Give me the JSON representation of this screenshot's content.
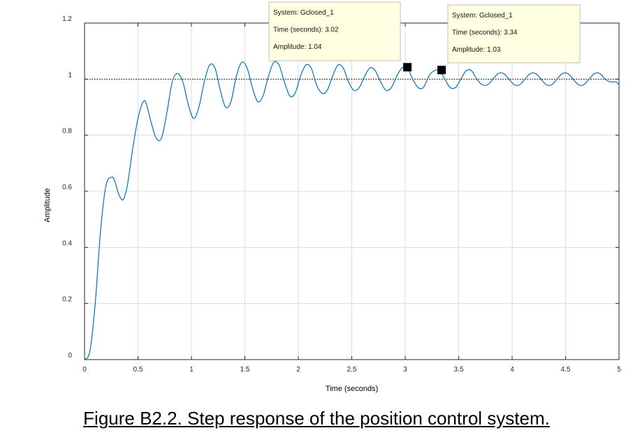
{
  "chart_data": {
    "type": "line",
    "title": "",
    "xlabel": "Time (seconds)",
    "ylabel": "Amplitude",
    "xlim": [
      0,
      5
    ],
    "ylim": [
      0,
      1.2
    ],
    "x_ticks": [
      0,
      0.5,
      1,
      1.5,
      2,
      2.5,
      3,
      3.5,
      4,
      4.5,
      5
    ],
    "x_tick_labels": [
      "0",
      "0.5",
      "1",
      "1.5",
      "2",
      "2.5",
      "3",
      "3.5",
      "4",
      "4.5",
      "5"
    ],
    "y_ticks": [
      0,
      0.2,
      0.4,
      0.6,
      0.8,
      1,
      1.2
    ],
    "y_tick_labels": [
      "0",
      "0.2",
      "0.4",
      "0.6",
      "0.8",
      "1",
      "1.2"
    ],
    "grid": true,
    "reference_line": {
      "y": 1,
      "style": "dotted"
    },
    "series": [
      {
        "color": "#0072bd",
        "x": [
          0,
          0.05,
          0.1,
          0.15,
          0.2,
          0.25,
          0.28,
          0.32,
          0.36,
          0.4,
          0.45,
          0.5,
          0.55,
          0.58,
          0.62,
          0.67,
          0.72,
          0.77,
          0.82,
          0.87,
          0.92,
          0.97,
          1.02,
          1.07,
          1.12,
          1.17,
          1.22,
          1.27,
          1.32,
          1.37,
          1.42,
          1.47,
          1.52,
          1.57,
          1.62,
          1.67,
          1.72,
          1.77,
          1.82,
          1.87,
          1.92,
          1.97,
          2.02,
          2.07,
          2.12,
          2.17,
          2.22,
          2.27,
          2.32,
          2.37,
          2.42,
          2.47,
          2.52,
          2.57,
          2.62,
          2.67,
          2.72,
          2.77,
          2.82,
          2.87,
          2.92,
          2.97,
          3.02,
          3.07,
          3.12,
          3.17,
          3.22,
          3.27,
          3.32,
          3.37,
          3.42,
          3.47,
          3.52,
          3.57,
          3.62,
          3.67,
          3.72,
          3.77,
          3.82,
          3.87,
          3.92,
          3.97,
          4.02,
          4.07,
          4.12,
          4.17,
          4.22,
          4.27,
          4.32,
          4.37,
          4.42,
          4.47,
          4.52,
          4.57,
          4.62,
          4.67,
          4.72,
          4.77,
          4.82,
          4.87,
          4.92,
          4.97,
          5.0
        ],
        "y": [
          0,
          0.03,
          0.2,
          0.46,
          0.62,
          0.65,
          0.64,
          0.59,
          0.57,
          0.62,
          0.75,
          0.86,
          0.92,
          0.91,
          0.85,
          0.79,
          0.79,
          0.88,
          0.99,
          1.02,
          0.99,
          0.91,
          0.86,
          0.9,
          0.99,
          1.05,
          1.04,
          0.96,
          0.9,
          0.92,
          1.01,
          1.06,
          1.04,
          0.97,
          0.92,
          0.94,
          1.01,
          1.06,
          1.05,
          0.99,
          0.94,
          0.95,
          1.01,
          1.05,
          1.04,
          0.98,
          0.95,
          0.96,
          1.01,
          1.05,
          1.04,
          0.99,
          0.96,
          0.97,
          1.01,
          1.04,
          1.03,
          0.99,
          0.96,
          0.97,
          1.01,
          1.04,
          1.04,
          1.0,
          0.97,
          0.97,
          1.01,
          1.03,
          1.03,
          1.0,
          0.97,
          0.97,
          1.0,
          1.03,
          1.03,
          1.0,
          0.98,
          0.98,
          1.0,
          1.02,
          1.02,
          1.0,
          0.98,
          0.98,
          1.0,
          1.02,
          1.02,
          1.0,
          0.98,
          0.98,
          1.0,
          1.02,
          1.02,
          1.0,
          0.98,
          0.98,
          1.0,
          1.02,
          1.02,
          1.0,
          0.99,
          0.99,
          0.98
        ]
      }
    ],
    "datatips": [
      {
        "x": 3.02,
        "y": 1.04,
        "system_label": "System: Gclosed_1",
        "time_label": "Time (seconds): 3.02",
        "amplitude_label": "Amplitude: 1.04"
      },
      {
        "x": 3.34,
        "y": 1.03,
        "system_label": "System: Gclosed_1",
        "time_label": "Time (seconds): 3.34",
        "amplitude_label": "Amplitude: 1.03"
      }
    ]
  },
  "caption": "Figure B2.2. Step response of the position control system."
}
